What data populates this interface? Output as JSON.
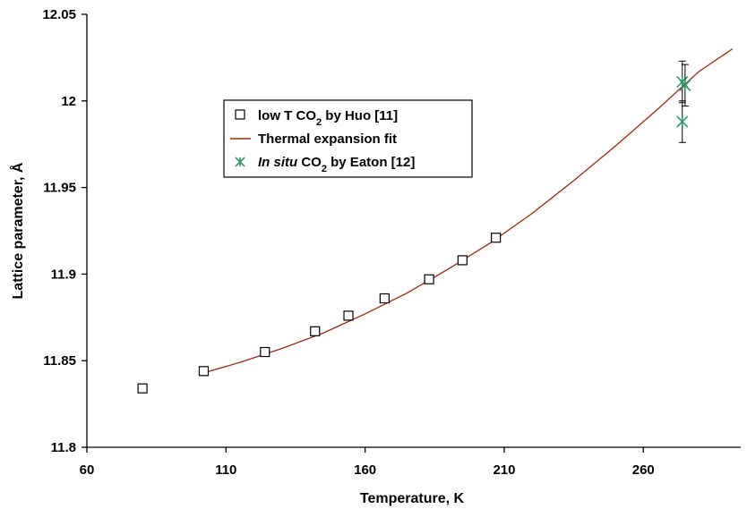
{
  "chart_data": {
    "type": "scatter",
    "xlabel": "Temperature, K",
    "ylabel": "Lattice parameter, Å",
    "xlim": [
      60,
      295
    ],
    "ylim": [
      11.8,
      12.05
    ],
    "x_ticks": [
      60,
      110,
      160,
      210,
      260
    ],
    "y_ticks": [
      11.8,
      11.85,
      11.9,
      11.95,
      12,
      12.05
    ],
    "x_tick_labels": [
      "60",
      "110",
      "160",
      "210",
      "260"
    ],
    "y_tick_labels": [
      "11.8",
      "11.85",
      "11.9",
      "11.95",
      "12",
      "12.05"
    ],
    "grid": false,
    "legend_position": "upper-left-center",
    "series": [
      {
        "name": "low T CO2 by Huo [11]",
        "legend_main": "low T CO",
        "legend_sub": "2",
        "legend_tail": " by Huo [11]",
        "marker": "open-square",
        "color": "#000000",
        "x": [
          80,
          102,
          124,
          142,
          154,
          167,
          183,
          195,
          207
        ],
        "y": [
          11.834,
          11.844,
          11.855,
          11.867,
          11.876,
          11.886,
          11.897,
          11.908,
          11.921
        ]
      },
      {
        "name": "Thermal expansion fit",
        "legend_main": "Thermal expansion fit",
        "type": "line",
        "color": "#9b2a0c",
        "x": [
          102,
          115,
          130,
          145,
          160,
          175,
          190,
          205,
          220,
          235,
          250,
          265,
          280,
          292
        ],
        "y": [
          11.843,
          11.849,
          11.857,
          11.866,
          11.877,
          11.889,
          11.903,
          11.918,
          11.935,
          11.954,
          11.974,
          11.995,
          12.017,
          12.03
        ]
      },
      {
        "name": "In situ CO2 by Eaton [12]",
        "legend_italic": "In situ",
        "legend_main": " CO",
        "legend_sub": "2",
        "legend_tail": " by Eaton [12]",
        "marker": "asterisk",
        "color": "#2e9a6b",
        "x": [
          274,
          275,
          274
        ],
        "y": [
          12.011,
          12.009,
          11.988
        ],
        "error": [
          0.012,
          0.012,
          0.012
        ]
      }
    ]
  }
}
